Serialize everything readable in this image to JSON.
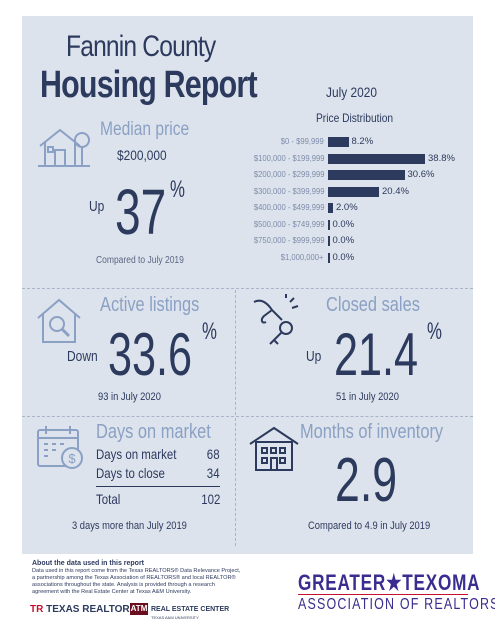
{
  "header": {
    "title_line1": "Fannin County",
    "title_line2": "Housing Report",
    "month": "July 2020"
  },
  "median_price": {
    "label": "Median price",
    "value": "$200,000",
    "direction": "Up",
    "change": "37",
    "pct_sign": "%",
    "compared": "Compared to July 2019"
  },
  "price_distribution": {
    "title": "Price Distribution"
  },
  "chart_data": {
    "type": "bar",
    "orientation": "horizontal",
    "title": "Price Distribution",
    "categories": [
      "$0 - $99,999",
      "$100,000 - $199,999",
      "$200,000 - $299,999",
      "$300,000 - $399,999",
      "$400,000 - $499,999",
      "$500,000 - $749,999",
      "$750,000 - $999,999",
      "$1,000,000+"
    ],
    "values": [
      8.2,
      38.8,
      30.6,
      20.4,
      2.0,
      0.0,
      0.0,
      0.0
    ],
    "value_labels": [
      "8.2%",
      "38.8%",
      "30.6%",
      "20.4%",
      "2.0%",
      "0.0%",
      "0.0%",
      "0.0%"
    ],
    "xlim": [
      0,
      40
    ],
    "color": "#2c3a5e"
  },
  "active_listings": {
    "label": "Active listings",
    "direction": "Down",
    "change": "33.6",
    "pct_sign": "%",
    "note": "93 in July 2020"
  },
  "closed_sales": {
    "label": "Closed sales",
    "direction": "Up",
    "change": "21.4",
    "pct_sign": "%",
    "note": "51 in July 2020"
  },
  "days_on_market": {
    "label": "Days on market",
    "rows": [
      {
        "key": "Days on market",
        "value": "68"
      },
      {
        "key": "Days to close",
        "value": "34"
      }
    ],
    "total_key": "Total",
    "total_value": "102",
    "note": "3 days more than July 2019"
  },
  "months_inventory": {
    "label": "Months of inventory",
    "value": "2.9",
    "note": "Compared to 4.9 in July 2019"
  },
  "footer": {
    "about_title": "About the data used in this report",
    "about_body": "Data used in this report come from the Texas REALTORS® Data Relevance Project, a partnership among the Texas Association of REALTORS® and local REALTOR® associations throughout the state. Analysis is provided through a research agreement with the Real Estate Center at Texas A&M University.",
    "texas_realtors_mark": "TR",
    "texas_realtors": "TEXAS REALTORS",
    "rec_mark": "ATM",
    "rec_name": "REAL ESTATE CENTER",
    "rec_sub": "TEXAS A&M UNIVERSITY",
    "assoc_line1": "GREATER★TEXOMA",
    "assoc_line2": "ASSOCIATION OF REALTORS"
  },
  "colors": {
    "navy": "#2c3a5e",
    "label_blue": "#8aa0c4",
    "panel": "#dde3ec",
    "brand_purple": "#3a2d8f",
    "brand_red": "#c8102e"
  }
}
